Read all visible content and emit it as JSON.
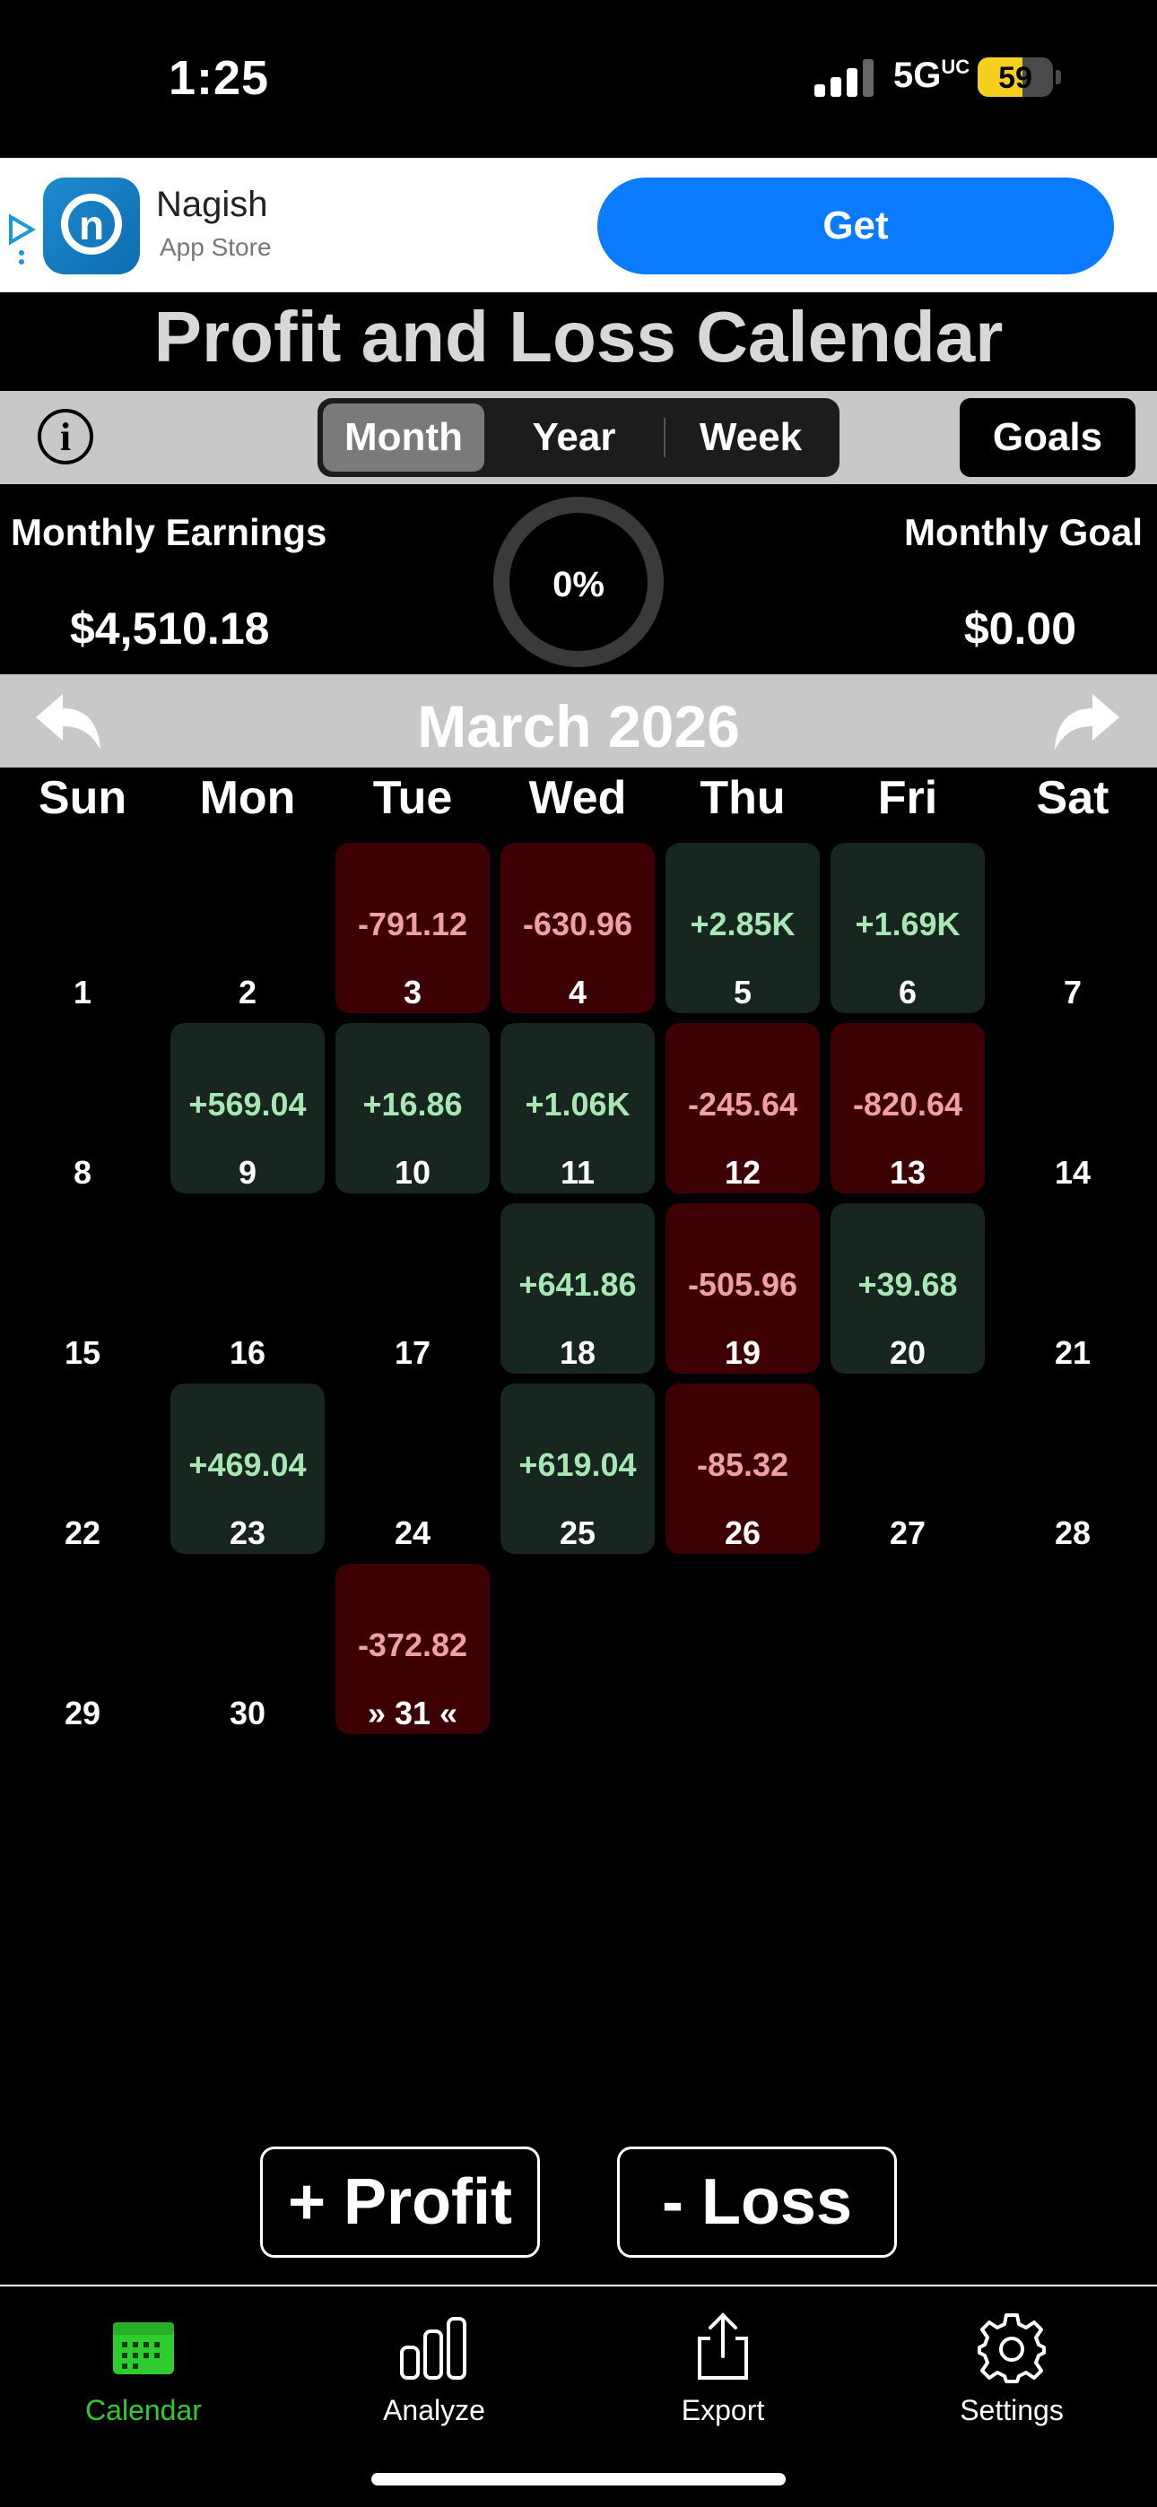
{
  "status": {
    "time": "1:25",
    "network": "5G",
    "network_suffix": "UC",
    "battery": "59",
    "battery_level": 0.59
  },
  "ad": {
    "app_name": "Nagish",
    "store": "App Store",
    "cta": "Get",
    "logo_letter": "n"
  },
  "title": "Profit and Loss Calendar",
  "toolbar": {
    "info_glyph": "i",
    "segments": [
      {
        "label": "Month",
        "active": true
      },
      {
        "label": "Year",
        "active": false
      },
      {
        "label": "Week",
        "active": false
      }
    ],
    "goals_label": "Goals"
  },
  "summary": {
    "earnings_label": "Monthly Earnings",
    "earnings_value": "$4,510.18",
    "progress": "0%",
    "goal_label": "Monthly Goal",
    "goal_value": "$0.00"
  },
  "calendar": {
    "month_title": "March 2026",
    "weekdays": [
      "Sun",
      "Mon",
      "Tue",
      "Wed",
      "Thu",
      "Fri",
      "Sat"
    ],
    "first_weekday": 0,
    "days": [
      {
        "day": "1"
      },
      {
        "day": "2"
      },
      {
        "day": "3",
        "amount": "-791.12",
        "type": "loss"
      },
      {
        "day": "4",
        "amount": "-630.96",
        "type": "loss"
      },
      {
        "day": "5",
        "amount": "+2.85K",
        "type": "profit"
      },
      {
        "day": "6",
        "amount": "+1.69K",
        "type": "profit"
      },
      {
        "day": "7"
      },
      {
        "day": "8"
      },
      {
        "day": "9",
        "amount": "+569.04",
        "type": "profit"
      },
      {
        "day": "10",
        "amount": "+16.86",
        "type": "profit"
      },
      {
        "day": "11",
        "amount": "+1.06K",
        "type": "profit"
      },
      {
        "day": "12",
        "amount": "-245.64",
        "type": "loss"
      },
      {
        "day": "13",
        "amount": "-820.64",
        "type": "loss"
      },
      {
        "day": "14"
      },
      {
        "day": "15"
      },
      {
        "day": "16"
      },
      {
        "day": "17"
      },
      {
        "day": "18",
        "amount": "+641.86",
        "type": "profit"
      },
      {
        "day": "19",
        "amount": "-505.96",
        "type": "loss"
      },
      {
        "day": "20",
        "amount": "+39.68",
        "type": "profit"
      },
      {
        "day": "21"
      },
      {
        "day": "22"
      },
      {
        "day": "23",
        "amount": "+469.04",
        "type": "profit"
      },
      {
        "day": "24"
      },
      {
        "day": "25",
        "amount": "+619.04",
        "type": "profit"
      },
      {
        "day": "26",
        "amount": "-85.32",
        "type": "loss"
      },
      {
        "day": "27"
      },
      {
        "day": "28"
      },
      {
        "day": "29"
      },
      {
        "day": "30"
      },
      {
        "day": "» 31 «",
        "amount": "-372.82",
        "type": "loss",
        "today": true
      }
    ]
  },
  "actions": {
    "profit_label": "+ Profit",
    "loss_label": "- Loss"
  },
  "tabs": [
    {
      "label": "Calendar",
      "icon": "calendar-icon",
      "active": true
    },
    {
      "label": "Analyze",
      "icon": "bar-chart-icon",
      "active": false
    },
    {
      "label": "Export",
      "icon": "share-icon",
      "active": false
    },
    {
      "label": "Settings",
      "icon": "gear-icon",
      "active": false
    }
  ],
  "colors": {
    "profit_bg": "#17261e",
    "loss_bg": "#3d0003",
    "profit_text": "#a8e6b4",
    "loss_text": "#f0a0a0",
    "accent": "#2ecc2e",
    "cta": "#0a7bff"
  }
}
